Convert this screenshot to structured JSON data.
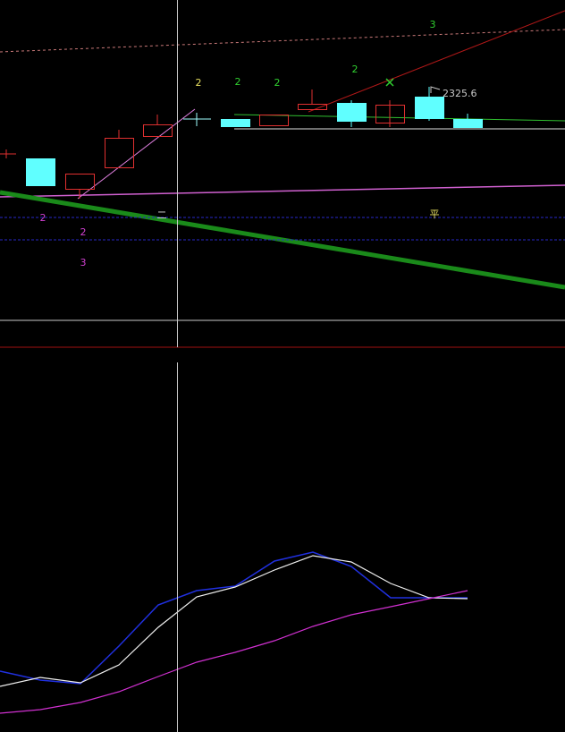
{
  "upper_panel": {
    "wave_labels": [
      "3",
      "2",
      "2",
      "2",
      "2"
    ],
    "price_label": "2325.6",
    "line_labels": [
      "平",
      "二"
    ],
    "lower_labels": [
      "2",
      "2",
      "3"
    ]
  }
}
